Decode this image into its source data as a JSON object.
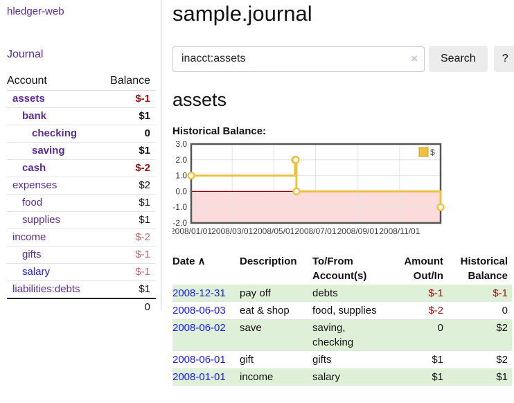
{
  "app": {
    "brand": "hledger-web"
  },
  "colors": {
    "link_purple": "#5c2d91",
    "link_blue": "#1b1be8",
    "negative_strong": "#a01414",
    "negative_soft": "#c26a65",
    "row_stripe_green": "#dff0d8"
  },
  "sidebar": {
    "journal_link": "Journal",
    "accounts_table": {
      "headers": {
        "account": "Account",
        "balance": "Balance"
      },
      "rows": [
        {
          "name": "assets",
          "balance": "$-1",
          "indent": 1,
          "bold": true,
          "balance_style": "neg-strong",
          "link_color": "purple"
        },
        {
          "name": "bank",
          "balance": "$1",
          "indent": 2,
          "bold": true,
          "balance_style": "pos",
          "link_color": "purple"
        },
        {
          "name": "checking",
          "balance": "0",
          "indent": 3,
          "bold": true,
          "balance_style": "pos",
          "link_color": "purple"
        },
        {
          "name": "saving",
          "balance": "$1",
          "indent": 3,
          "bold": true,
          "balance_style": "pos",
          "link_color": "purple"
        },
        {
          "name": "cash",
          "balance": "$-2",
          "indent": 2,
          "bold": true,
          "balance_style": "neg-strong",
          "link_color": "purple"
        },
        {
          "name": "expenses",
          "balance": "$2",
          "indent": 1,
          "bold": false,
          "balance_style": "pos",
          "link_color": "purple"
        },
        {
          "name": "food",
          "balance": "$1",
          "indent": 2,
          "bold": false,
          "balance_style": "pos",
          "link_color": "purple"
        },
        {
          "name": "supplies",
          "balance": "$1",
          "indent": 2,
          "bold": false,
          "balance_style": "pos",
          "link_color": "purple"
        },
        {
          "name": "income",
          "balance": "$-2",
          "indent": 1,
          "bold": false,
          "balance_style": "neg-soft",
          "link_color": "purple"
        },
        {
          "name": "gifts",
          "balance": "$-1",
          "indent": 2,
          "bold": false,
          "balance_style": "neg-soft",
          "link_color": "purple"
        },
        {
          "name": "salary",
          "balance": "$-1",
          "indent": 2,
          "bold": false,
          "balance_style": "neg-soft",
          "link_color": "blue"
        },
        {
          "name": "liabilities:debts",
          "balance": "$1",
          "indent": 1,
          "bold": false,
          "balance_style": "pos",
          "link_color": "purple"
        }
      ],
      "total": "0"
    }
  },
  "header": {
    "title": "sample.journal"
  },
  "search": {
    "query": "inacct:assets",
    "clear_icon": "×",
    "button_label": "Search",
    "help_label": "?"
  },
  "account_page": {
    "heading": "assets",
    "chart_label": "Historical Balance:"
  },
  "chart_data": {
    "type": "line",
    "title": "Historical Balance",
    "step": true,
    "series": [
      {
        "name": "$",
        "points": [
          [
            "2008-01-01",
            1
          ],
          [
            "2008-06-01",
            2
          ],
          [
            "2008-06-02",
            2
          ],
          [
            "2008-06-03",
            0
          ],
          [
            "2008-12-31",
            -1
          ]
        ]
      }
    ],
    "x_range": [
      "2008-01-01",
      "2008-12-31"
    ],
    "x_ticks": [
      "2008/01/01",
      "2008/03/01",
      "2008/05/01",
      "2008/07/01",
      "2008/09/01",
      "2008/11/01"
    ],
    "y_ticks": [
      "3.0",
      "2.0",
      "1.0",
      "0.0",
      "-1.0",
      "-2.0"
    ],
    "ylim": [
      -2,
      3
    ],
    "legend": "$",
    "legend_position": "top-right",
    "grid": true,
    "colors": {
      "line": "#edc240",
      "negative_region": "#fbdbdb",
      "zero_line": "#8b0000",
      "grid": "#e4e4e4",
      "border": "#545454",
      "legend_swatch_border": "#c9a32e"
    }
  },
  "transactions": {
    "headers": [
      {
        "label": "Date",
        "sort_icon": "∧",
        "align": "left"
      },
      {
        "label": "Description",
        "align": "left"
      },
      {
        "label": "To/From Account(s)",
        "align": "left"
      },
      {
        "label": "Amount Out/In",
        "align": "right"
      },
      {
        "label": "Historical Balance",
        "align": "right"
      }
    ],
    "rows": [
      {
        "date": "2008-12-31",
        "description": "pay off",
        "accounts": "debts",
        "amount": "$-1",
        "amount_negative": true,
        "balance": "$-1",
        "balance_negative": true
      },
      {
        "date": "2008-06-03",
        "description": "eat & shop",
        "accounts": "food, supplies",
        "amount": "$-2",
        "amount_negative": true,
        "balance": "0",
        "balance_negative": false
      },
      {
        "date": "2008-06-02",
        "description": "save",
        "accounts": "saving, checking",
        "amount": "0",
        "amount_negative": false,
        "balance": "$2",
        "balance_negative": false
      },
      {
        "date": "2008-06-01",
        "description": "gift",
        "accounts": "gifts",
        "amount": "$1",
        "amount_negative": false,
        "balance": "$2",
        "balance_negative": false
      },
      {
        "date": "2008-01-01",
        "description": "income",
        "accounts": "salary",
        "amount": "$1",
        "amount_negative": false,
        "balance": "$1",
        "balance_negative": false
      }
    ]
  }
}
